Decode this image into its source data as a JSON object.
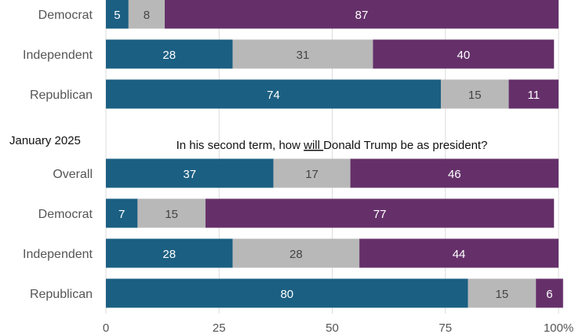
{
  "chart_data": {
    "type": "bar",
    "orientation": "horizontal",
    "stacked": true,
    "xlim": [
      0,
      100
    ],
    "xticks": [
      "0",
      "25",
      "50",
      "75",
      "100%"
    ],
    "grid": true,
    "series_colors": [
      "#1b5f82",
      "#b8b8b8",
      "#65306a"
    ],
    "panels": [
      {
        "heading": "",
        "title_parts": [],
        "categories": [
          "Democrat",
          "Independent",
          "Republican"
        ],
        "rows": [
          [
            5,
            8,
            87
          ],
          [
            28,
            31,
            40
          ],
          [
            74,
            15,
            11
          ]
        ]
      },
      {
        "heading": "January 2025",
        "title_parts": [
          {
            "text": "In his second term, how ",
            "underline": false
          },
          {
            "text": "will ",
            "underline": true
          },
          {
            "text": "Donald Trump be as president?",
            "underline": false
          }
        ],
        "categories": [
          "Overall",
          "Democrat",
          "Independent",
          "Republican"
        ],
        "rows": [
          [
            37,
            17,
            46
          ],
          [
            7,
            15,
            77
          ],
          [
            28,
            28,
            44
          ],
          [
            80,
            15,
            6
          ]
        ]
      }
    ]
  }
}
